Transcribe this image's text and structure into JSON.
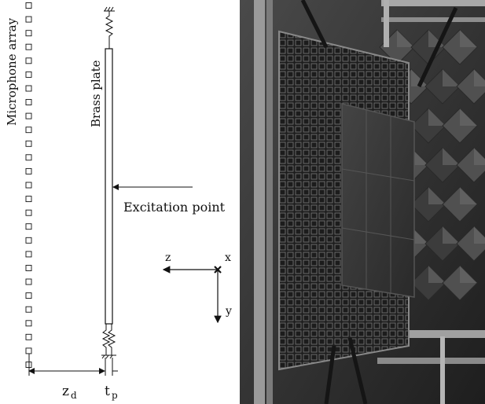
{
  "diagram": {
    "mic_array_label": "Microphone array",
    "plate_label": "Brass plate",
    "excitation_label": "Excitation point",
    "axis_x": "x",
    "axis_y": "y",
    "axis_z": "z",
    "dim_zd": "z",
    "dim_zd_sub": "d",
    "dim_tp": "t",
    "dim_tp_sub": "p",
    "microphone_count": 27
  },
  "photo": {
    "subject": "brass plate mounted on frame in anechoic chamber"
  }
}
